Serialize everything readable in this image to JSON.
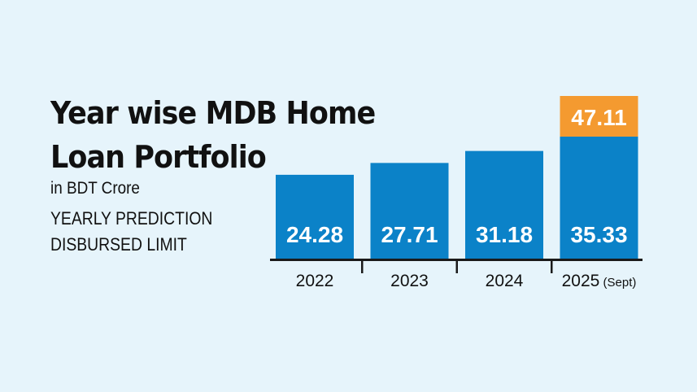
{
  "chart_data": {
    "type": "bar",
    "title_line1": "Year wise MDB Home",
    "title_line2": "Loan Portfolio",
    "subtitle": "in BDT Crore",
    "series_labels": [
      "YEARLY PREDICTION",
      "DISBURSED LIMIT"
    ],
    "categories": [
      {
        "main": "2022",
        "note": ""
      },
      {
        "main": "2023",
        "note": ""
      },
      {
        "main": "2024",
        "note": ""
      },
      {
        "main": "2025",
        "note": "(Sept)"
      }
    ],
    "series": [
      {
        "name": "YEARLY PREDICTION",
        "values": [
          24.28,
          27.71,
          31.18,
          35.33
        ],
        "labels": [
          "24.28",
          "27.71",
          "31.18",
          "35.33"
        ]
      },
      {
        "name": "DISBURSED LIMIT",
        "values": [
          null,
          null,
          null,
          47.11
        ],
        "labels": [
          "",
          "",
          "",
          "47.11"
        ]
      }
    ],
    "colors": {
      "blue": "#0b82c8",
      "orange": "#f49a30",
      "axis": "#1a1a1a",
      "label": "#ffffff",
      "text": "#111111"
    },
    "ylim": [
      0,
      47.11
    ]
  }
}
